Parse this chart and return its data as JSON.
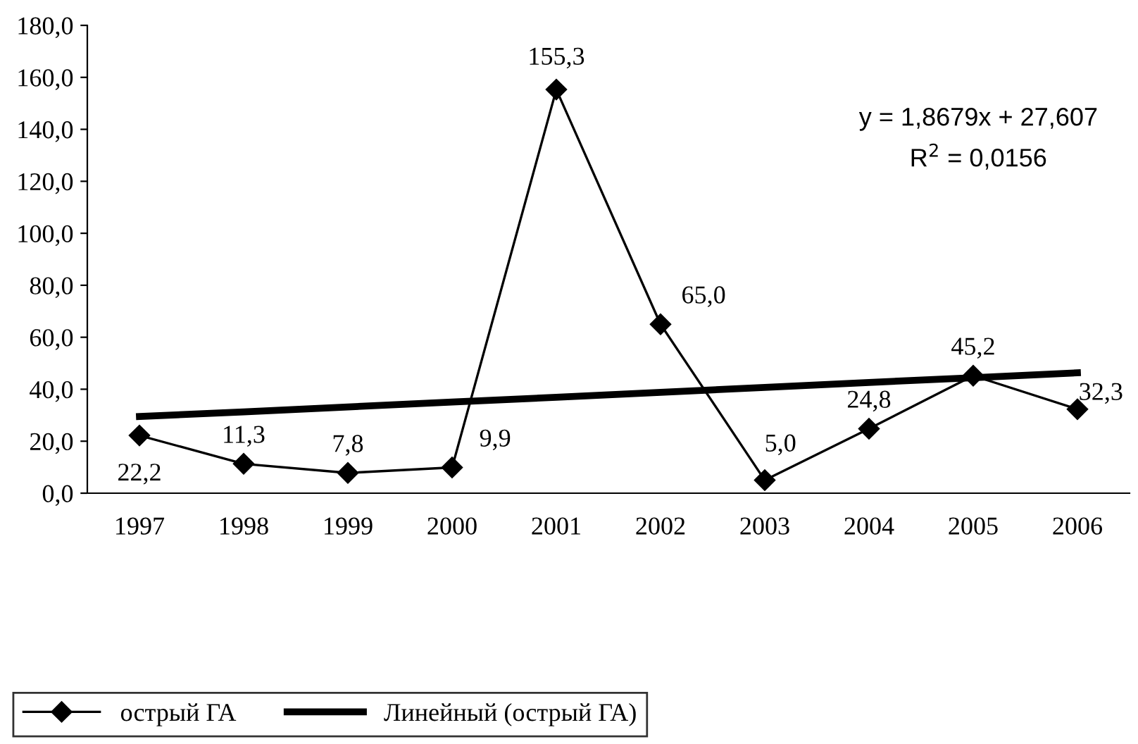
{
  "chart_data": {
    "type": "line",
    "categories": [
      "1997",
      "1998",
      "1999",
      "2000",
      "2001",
      "2002",
      "2003",
      "2004",
      "2005",
      "2006"
    ],
    "series": [
      {
        "name": "острый ГА",
        "color": "#000000",
        "marker": "diamond",
        "values": [
          22.2,
          11.3,
          7.8,
          9.9,
          155.3,
          65.0,
          5.0,
          24.8,
          45.2,
          32.3
        ],
        "value_labels": [
          "22,2",
          "11,3",
          "7,8",
          "9,9",
          "155,3",
          "65,0",
          "5,0",
          "24,8",
          "45,2",
          "32,3"
        ]
      },
      {
        "name": "Линейный (острый ГА)",
        "color": "#000000",
        "marker": "none",
        "values": [
          29.5,
          31.3,
          33.2,
          35.1,
          36.9,
          38.8,
          40.7,
          42.6,
          44.4,
          46.3
        ]
      }
    ],
    "annotations": [
      "y = 1,8679x + 27,607",
      "R$^{2}$ = 0,0156"
    ],
    "ylim": [
      0,
      180
    ],
    "yticks": [
      {
        "value": 0,
        "label": "0,0"
      },
      {
        "value": 20,
        "label": "20,0"
      },
      {
        "value": 40,
        "label": "40,0"
      },
      {
        "value": 60,
        "label": "60,0"
      },
      {
        "value": 80,
        "label": "80,0"
      },
      {
        "value": 100,
        "label": "100,0"
      },
      {
        "value": 120,
        "label": "120,0"
      },
      {
        "value": 140,
        "label": "140,0"
      },
      {
        "value": 160,
        "label": "160,0"
      },
      {
        "value": 180,
        "label": "180,0"
      }
    ],
    "grid": false,
    "legend": "bottom"
  }
}
